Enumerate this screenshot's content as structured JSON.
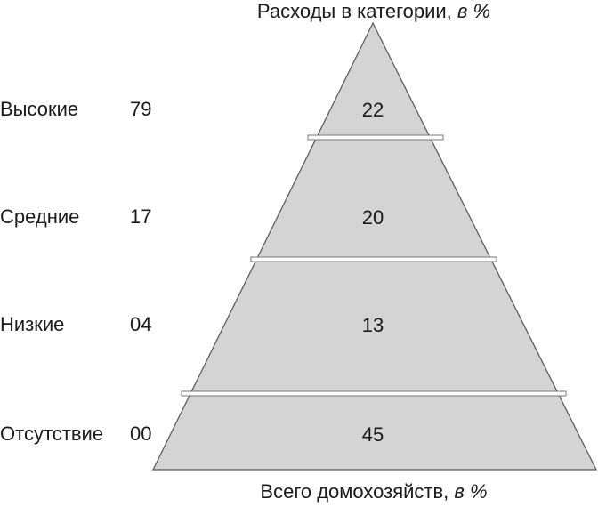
{
  "title_top": {
    "text": "Расходы в категории,",
    "unit": "в %"
  },
  "title_bottom": {
    "text": "Всего домохозяйств,",
    "unit": "в %"
  },
  "rows": [
    {
      "label": "Высокие",
      "value": "79",
      "pyramid_value": "22"
    },
    {
      "label": "Средние",
      "value": "17",
      "pyramid_value": "20"
    },
    {
      "label": "Низкие",
      "value": "04",
      "pyramid_value": "13"
    },
    {
      "label": "Отсутствие",
      "value": "00",
      "pyramid_value": "45"
    }
  ],
  "colors": {
    "pyramid_fill": "#d4d4d4",
    "pyramid_stroke": "#555555",
    "divider": "#ffffff",
    "text": "#1a1a1a"
  }
}
